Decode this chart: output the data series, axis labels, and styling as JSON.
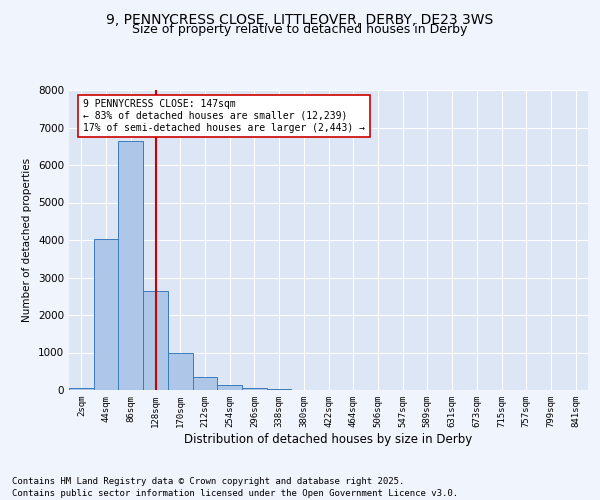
{
  "title": "9, PENNYCRESS CLOSE, LITTLEOVER, DERBY, DE23 3WS",
  "subtitle": "Size of property relative to detached houses in Derby",
  "xlabel": "Distribution of detached houses by size in Derby",
  "ylabel": "Number of detached properties",
  "bin_labels": [
    "2sqm",
    "44sqm",
    "86sqm",
    "128sqm",
    "170sqm",
    "212sqm",
    "254sqm",
    "296sqm",
    "338sqm",
    "380sqm",
    "422sqm",
    "464sqm",
    "506sqm",
    "547sqm",
    "589sqm",
    "631sqm",
    "673sqm",
    "715sqm",
    "757sqm",
    "799sqm",
    "841sqm"
  ],
  "bar_values": [
    50,
    4020,
    6650,
    2650,
    980,
    340,
    130,
    60,
    20,
    5,
    2,
    0,
    0,
    0,
    0,
    0,
    0,
    0,
    0,
    0,
    0
  ],
  "bar_color": "#aec6e8",
  "bar_edge_color": "#3a7abf",
  "vline_x": 3,
  "vline_color": "#cc0000",
  "annotation_text": "9 PENNYCRESS CLOSE: 147sqm\n← 83% of detached houses are smaller (12,239)\n17% of semi-detached houses are larger (2,443) →",
  "annotation_box_color": "#ffffff",
  "annotation_box_edge": "#cc0000",
  "ylim": [
    0,
    8000
  ],
  "yticks": [
    0,
    1000,
    2000,
    3000,
    4000,
    5000,
    6000,
    7000,
    8000
  ],
  "background_color": "#dce6f5",
  "grid_color": "#ffffff",
  "fig_background": "#f0f4fc",
  "title_fontsize": 10,
  "subtitle_fontsize": 9,
  "footer_text": "Contains HM Land Registry data © Crown copyright and database right 2025.\nContains public sector information licensed under the Open Government Licence v3.0.",
  "footer_fontsize": 6.5
}
